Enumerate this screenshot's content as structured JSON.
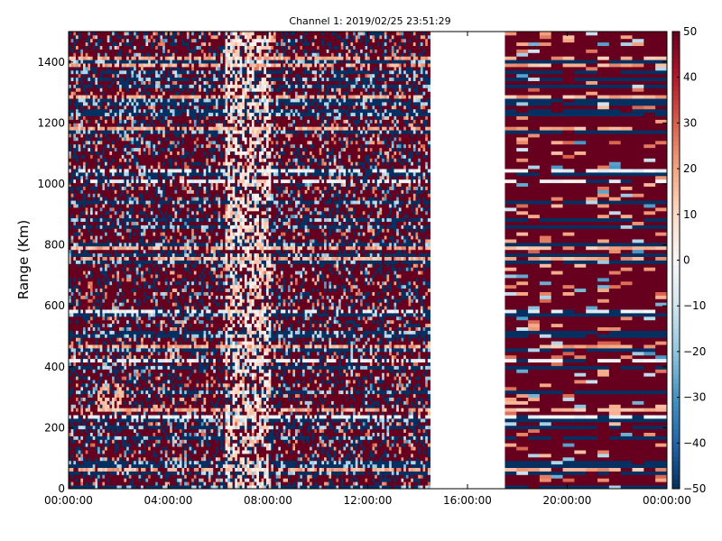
{
  "chart_data": {
    "type": "heatmap",
    "title": "Channel 1: 2019/02/25 23:51:29",
    "xlabel": "",
    "ylabel": "Range (Km)",
    "x_ticks": [
      "00:00:00",
      "04:00:00",
      "08:00:00",
      "12:00:00",
      "16:00:00",
      "20:00:00",
      "00:00:00"
    ],
    "x_range_hours": [
      0,
      24
    ],
    "ylim": [
      0,
      1500
    ],
    "y_ticks": [
      0,
      200,
      400,
      600,
      800,
      1000,
      1200,
      1400
    ],
    "colorbar": {
      "range": [
        -50,
        50
      ],
      "ticks": [
        50,
        40,
        30,
        20,
        10,
        0,
        -10,
        -20,
        -30,
        -40,
        -50
      ],
      "colormap": "RdBu_r"
    },
    "data_segments_hours": [
      [
        0,
        14.5
      ],
      [
        17.5,
        24
      ]
    ],
    "no_data_gap_hours": [
      14.5,
      17.5
    ],
    "features": {
      "bright_column_hours": [
        6.3,
        8.1
      ],
      "warm_patch": {
        "hours": [
          1.2,
          2.2
        ],
        "range_km": [
          250,
          350
        ]
      }
    },
    "colors": {
      "negative_max": "#053061",
      "neutral": "#f7f7f7",
      "positive_max": "#67001f"
    }
  }
}
